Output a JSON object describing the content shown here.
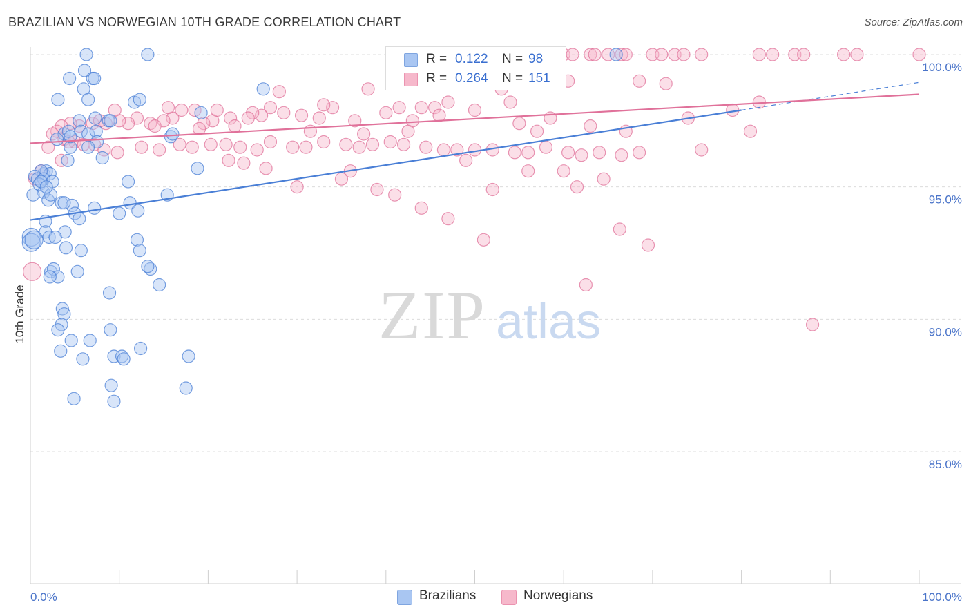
{
  "header": {
    "title": "BRAZILIAN VS NORWEGIAN 10TH GRADE CORRELATION CHART",
    "source": "Source: ZipAtlas.com"
  },
  "watermark": {
    "zip": "ZIP",
    "atlas": "atlas"
  },
  "legend": {
    "rows": [
      {
        "r_label": "R =",
        "r_value": "0.122",
        "n_label": "N =",
        "n_value": "98",
        "color": "#a9c6f2"
      },
      {
        "r_label": "R =",
        "r_value": "0.264",
        "n_label": "N =",
        "n_value": "151",
        "color": "#f6b8cb"
      }
    ]
  },
  "bottom_legend": [
    {
      "label": "Brazilians",
      "color": "#a9c6f2"
    },
    {
      "label": "Norwegians",
      "color": "#f6b8cb"
    }
  ],
  "chart_data": {
    "type": "scatter",
    "title": "BRAZILIAN VS NORWEGIAN 10TH GRADE CORRELATION CHART",
    "xlabel": "",
    "ylabel": "10th Grade",
    "xlim": [
      0,
      100
    ],
    "ylim": [
      80.5,
      100.8
    ],
    "x_tick_labels": [
      "0.0%",
      "100.0%"
    ],
    "y_tick_values": [
      85,
      90,
      95,
      100
    ],
    "y_tick_labels": [
      "85.0%",
      "90.0%",
      "95.0%",
      "100.0%"
    ],
    "grid": true,
    "legend_position": "top-center",
    "series": [
      {
        "name": "Brazilians",
        "color": "#4a7fd6",
        "fill": "#a9c6f2",
        "r": 0.122,
        "n": 98,
        "trend": {
          "x": [
            0,
            80
          ],
          "y": [
            93.75,
            97.9
          ],
          "dashed_ext": {
            "x": [
              80,
              100
            ],
            "y": [
              97.9,
              98.95
            ]
          }
        },
        "points": [
          [
            6.3,
            100
          ],
          [
            13.2,
            100
          ],
          [
            65.9,
            100
          ],
          [
            6.1,
            99.4
          ],
          [
            4.4,
            99.1
          ],
          [
            7.0,
            99.1
          ],
          [
            7.2,
            99.1
          ],
          [
            3.1,
            98.3
          ],
          [
            6.0,
            98.7
          ],
          [
            11.7,
            98.2
          ],
          [
            26.2,
            98.7
          ],
          [
            6.5,
            98.3
          ],
          [
            5.5,
            97.5
          ],
          [
            8.8,
            97.5
          ],
          [
            19.2,
            97.8
          ],
          [
            3.8,
            97.0
          ],
          [
            4.3,
            97.1
          ],
          [
            5.7,
            97.1
          ],
          [
            6.5,
            97.0
          ],
          [
            7.4,
            97.1
          ],
          [
            7.5,
            96.7
          ],
          [
            3.0,
            96.8
          ],
          [
            4.5,
            96.5
          ],
          [
            6.5,
            96.5
          ],
          [
            8.1,
            96.1
          ],
          [
            4.2,
            96.0
          ],
          [
            15.8,
            96.9
          ],
          [
            1.5,
            95.5
          ],
          [
            1.8,
            95.6
          ],
          [
            2.2,
            95.5
          ],
          [
            1.2,
            95.6
          ],
          [
            0.5,
            95.4
          ],
          [
            0.8,
            95.3
          ],
          [
            1.5,
            95.3
          ],
          [
            2.5,
            95.2
          ],
          [
            1.0,
            95.1
          ],
          [
            11.0,
            95.2
          ],
          [
            18.8,
            95.7
          ],
          [
            1.5,
            94.8
          ],
          [
            0.3,
            94.7
          ],
          [
            2.0,
            94.5
          ],
          [
            2.3,
            94.7
          ],
          [
            3.5,
            94.4
          ],
          [
            4.7,
            94.3
          ],
          [
            5.0,
            94.0
          ],
          [
            7.2,
            94.2
          ],
          [
            10.0,
            94.0
          ],
          [
            11.2,
            94.4
          ],
          [
            12.1,
            94.1
          ],
          [
            15.4,
            94.7
          ],
          [
            1.7,
            93.7
          ],
          [
            3.8,
            94.4
          ],
          [
            5.5,
            93.8
          ],
          [
            3.9,
            93.3
          ],
          [
            1.7,
            93.3
          ],
          [
            0.1,
            93.1
          ],
          [
            0.1,
            92.9
          ],
          [
            2.1,
            93.1
          ],
          [
            12.0,
            93.0
          ],
          [
            4.0,
            92.7
          ],
          [
            5.7,
            92.6
          ],
          [
            12.3,
            92.6
          ],
          [
            2.3,
            91.8
          ],
          [
            2.6,
            91.9
          ],
          [
            5.3,
            91.8
          ],
          [
            3.1,
            91.6
          ],
          [
            2.2,
            91.6
          ],
          [
            13.5,
            91.9
          ],
          [
            14.5,
            91.3
          ],
          [
            8.9,
            91.0
          ],
          [
            3.6,
            90.4
          ],
          [
            3.8,
            90.2
          ],
          [
            3.5,
            89.8
          ],
          [
            3.1,
            89.6
          ],
          [
            9.0,
            89.6
          ],
          [
            4.6,
            89.2
          ],
          [
            6.7,
            89.2
          ],
          [
            3.4,
            88.8
          ],
          [
            12.4,
            88.9
          ],
          [
            9.4,
            88.6
          ],
          [
            10.3,
            88.6
          ],
          [
            10.5,
            88.5
          ],
          [
            5.9,
            88.5
          ],
          [
            17.8,
            88.6
          ],
          [
            9.1,
            87.5
          ],
          [
            17.5,
            87.4
          ],
          [
            4.9,
            87.0
          ],
          [
            9.4,
            86.9
          ],
          [
            12.3,
            98.3
          ],
          [
            16.0,
            97.0
          ],
          [
            1.2,
            95.2
          ],
          [
            2.8,
            93.1
          ],
          [
            13.2,
            92.0
          ],
          [
            4.5,
            96.9
          ],
          [
            7.3,
            97.6
          ],
          [
            9.0,
            97.5
          ],
          [
            1.8,
            95.0
          ],
          [
            0.4,
            93.0
          ]
        ]
      },
      {
        "name": "Norwegians",
        "color": "#e0719a",
        "fill": "#f6b8cb",
        "r": 0.264,
        "n": 151,
        "trend": {
          "x": [
            0,
            100
          ],
          "y": [
            96.65,
            98.5
          ]
        },
        "points": [
          [
            60.0,
            100
          ],
          [
            61.0,
            100
          ],
          [
            63.0,
            100
          ],
          [
            63.5,
            100
          ],
          [
            65.0,
            100
          ],
          [
            66.5,
            100
          ],
          [
            67.0,
            100
          ],
          [
            70.0,
            100
          ],
          [
            71.0,
            100
          ],
          [
            72.5,
            100
          ],
          [
            73.5,
            100
          ],
          [
            75.5,
            100
          ],
          [
            82.0,
            100
          ],
          [
            83.5,
            100
          ],
          [
            86.0,
            100
          ],
          [
            87.0,
            100
          ],
          [
            91.5,
            100
          ],
          [
            93.0,
            100
          ],
          [
            100.0,
            100
          ],
          [
            48.0,
            99.3
          ],
          [
            49.0,
            99.2
          ],
          [
            54.5,
            99.1
          ],
          [
            56.0,
            99.0
          ],
          [
            57.5,
            99.0
          ],
          [
            60.5,
            99.0
          ],
          [
            68.5,
            99.0
          ],
          [
            71.5,
            98.9
          ],
          [
            28.0,
            98.6
          ],
          [
            38.0,
            98.7
          ],
          [
            53.0,
            98.7
          ],
          [
            54.0,
            98.2
          ],
          [
            47.0,
            98.2
          ],
          [
            41.5,
            98.0
          ],
          [
            44.0,
            98.0
          ],
          [
            45.5,
            98.0
          ],
          [
            34.0,
            98.0
          ],
          [
            33.0,
            98.1
          ],
          [
            27.0,
            98.0
          ],
          [
            26.0,
            97.7
          ],
          [
            25.0,
            97.8
          ],
          [
            24.5,
            97.6
          ],
          [
            22.5,
            97.6
          ],
          [
            20.5,
            97.5
          ],
          [
            19.5,
            97.4
          ],
          [
            16.0,
            97.6
          ],
          [
            15.0,
            97.5
          ],
          [
            13.5,
            97.4
          ],
          [
            12.0,
            97.6
          ],
          [
            11.0,
            97.4
          ],
          [
            10.0,
            97.5
          ],
          [
            8.5,
            97.4
          ],
          [
            7.0,
            97.4
          ],
          [
            5.5,
            97.3
          ],
          [
            4.5,
            97.4
          ],
          [
            3.5,
            97.3
          ],
          [
            3.0,
            97.1
          ],
          [
            2.5,
            97.0
          ],
          [
            3.8,
            96.8
          ],
          [
            5.0,
            96.7
          ],
          [
            4.3,
            96.7
          ],
          [
            6.0,
            96.6
          ],
          [
            7.2,
            96.6
          ],
          [
            8.3,
            96.4
          ],
          [
            9.8,
            96.3
          ],
          [
            12.5,
            96.5
          ],
          [
            14.5,
            96.4
          ],
          [
            16.8,
            96.6
          ],
          [
            18.2,
            96.5
          ],
          [
            20.3,
            96.6
          ],
          [
            22.0,
            96.6
          ],
          [
            23.6,
            96.5
          ],
          [
            25.5,
            96.4
          ],
          [
            27.0,
            96.7
          ],
          [
            29.5,
            96.5
          ],
          [
            31.0,
            96.5
          ],
          [
            33.0,
            96.7
          ],
          [
            35.5,
            96.6
          ],
          [
            37.0,
            96.5
          ],
          [
            38.5,
            96.6
          ],
          [
            40.5,
            96.7
          ],
          [
            42.0,
            96.6
          ],
          [
            44.5,
            96.5
          ],
          [
            46.5,
            96.4
          ],
          [
            48.0,
            96.4
          ],
          [
            50.0,
            96.4
          ],
          [
            52.0,
            96.4
          ],
          [
            54.5,
            96.3
          ],
          [
            56.0,
            96.3
          ],
          [
            58.0,
            96.5
          ],
          [
            60.5,
            96.3
          ],
          [
            62.0,
            96.2
          ],
          [
            64.0,
            96.3
          ],
          [
            66.5,
            96.2
          ],
          [
            68.5,
            96.3
          ],
          [
            49.0,
            96.0
          ],
          [
            22.3,
            96.0
          ],
          [
            24.0,
            95.9
          ],
          [
            26.5,
            95.7
          ],
          [
            36.0,
            95.6
          ],
          [
            35.0,
            95.3
          ],
          [
            41.0,
            94.7
          ],
          [
            44.0,
            94.2
          ],
          [
            47.0,
            93.8
          ],
          [
            51.0,
            93.0
          ],
          [
            56.0,
            95.6
          ],
          [
            60.0,
            95.6
          ],
          [
            61.5,
            95.0
          ],
          [
            64.5,
            95.3
          ],
          [
            30.0,
            95.0
          ],
          [
            39.0,
            94.9
          ],
          [
            52.0,
            94.9
          ],
          [
            66.3,
            93.4
          ],
          [
            69.5,
            92.8
          ],
          [
            62.5,
            91.3
          ],
          [
            88.0,
            89.8
          ],
          [
            3.5,
            96.0
          ],
          [
            0.2,
            91.8
          ],
          [
            1.2,
            95.6
          ],
          [
            0.5,
            95.3
          ],
          [
            2.0,
            96.5
          ],
          [
            15.5,
            98.0
          ],
          [
            17.0,
            97.9
          ],
          [
            18.5,
            97.9
          ],
          [
            21.0,
            97.9
          ],
          [
            28.5,
            97.8
          ],
          [
            30.5,
            97.7
          ],
          [
            32.5,
            97.6
          ],
          [
            36.5,
            97.5
          ],
          [
            40.0,
            97.8
          ],
          [
            43.0,
            97.5
          ],
          [
            46.0,
            97.7
          ],
          [
            50.0,
            97.9
          ],
          [
            55.0,
            97.4
          ],
          [
            58.5,
            97.6
          ],
          [
            63.0,
            97.3
          ],
          [
            67.0,
            97.1
          ],
          [
            74.0,
            97.6
          ],
          [
            79.0,
            97.9
          ],
          [
            81.0,
            97.1
          ],
          [
            82.0,
            98.2
          ],
          [
            75.5,
            96.4
          ],
          [
            7.8,
            97.5
          ],
          [
            9.5,
            97.9
          ],
          [
            14.0,
            97.3
          ],
          [
            19.0,
            97.2
          ],
          [
            23.0,
            97.3
          ],
          [
            31.5,
            97.1
          ],
          [
            37.5,
            97.0
          ],
          [
            42.5,
            97.1
          ],
          [
            57.0,
            97.1
          ]
        ]
      }
    ]
  }
}
